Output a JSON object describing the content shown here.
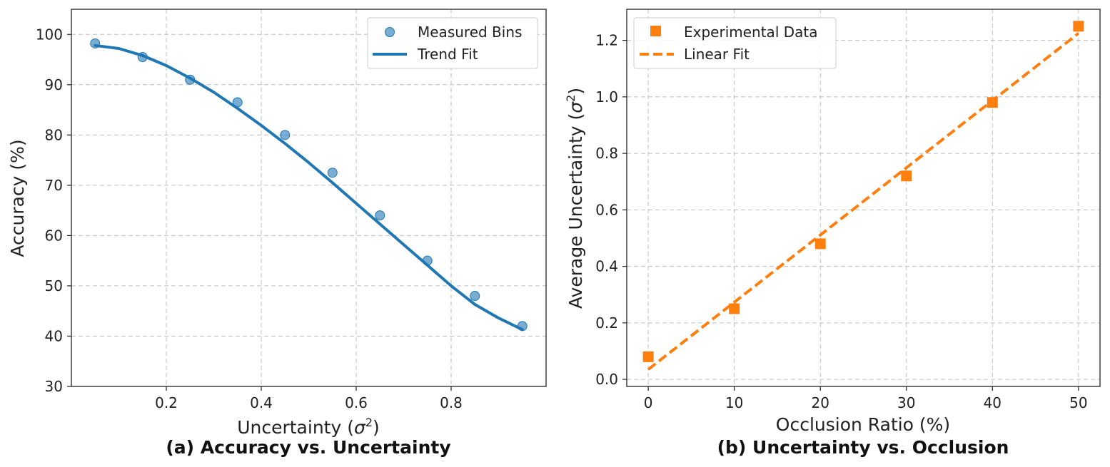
{
  "chart_data": [
    {
      "type": "scatter",
      "title": "",
      "caption": "(a) Accuracy vs. Uncertainty",
      "xlabel": "Uncertainty (",
      "xlabel_symbol": "σ",
      "xlabel_sup": "2",
      "xlabel_close": ")",
      "ylabel": "Accuracy (%)",
      "xlim": [
        0.0,
        1.0
      ],
      "ylim": [
        30,
        105
      ],
      "xticks": [
        0.2,
        0.4,
        0.6,
        0.8
      ],
      "xtick_labels": [
        "0.2",
        "0.4",
        "0.6",
        "0.8"
      ],
      "yticks": [
        30,
        40,
        50,
        60,
        70,
        80,
        90,
        100
      ],
      "ytick_labels": [
        "30",
        "40",
        "50",
        "60",
        "70",
        "80",
        "90",
        "100"
      ],
      "grid": true,
      "legend_position": "top-right",
      "series": [
        {
          "name": "Measured Bins",
          "kind": "scatter",
          "color": "#1f77b4",
          "x": [
            0.05,
            0.15,
            0.25,
            0.35,
            0.45,
            0.55,
            0.65,
            0.75,
            0.85,
            0.95
          ],
          "y": [
            98.2,
            95.5,
            91.0,
            86.5,
            80.0,
            72.5,
            64.0,
            55.0,
            48.0,
            42.0
          ]
        },
        {
          "name": "Trend Fit",
          "kind": "line",
          "color": "#1f77b4",
          "x": [
            0.05,
            0.1,
            0.15,
            0.2,
            0.25,
            0.3,
            0.35,
            0.4,
            0.45,
            0.5,
            0.55,
            0.6,
            0.65,
            0.7,
            0.75,
            0.8,
            0.85,
            0.9,
            0.95
          ],
          "y": [
            97.8,
            97.2,
            95.8,
            93.8,
            91.3,
            88.5,
            85.3,
            81.9,
            78.3,
            74.5,
            70.5,
            66.4,
            62.3,
            58.2,
            54.1,
            50.0,
            46.3,
            43.6,
            41.3
          ]
        }
      ]
    },
    {
      "type": "scatter",
      "title": "",
      "caption": "(b) Uncertainty vs. Occlusion",
      "xlabel": "Occlusion Ratio (%)",
      "ylabel": "Average Uncertainty (",
      "ylabel_symbol": "σ",
      "ylabel_sup": "2",
      "ylabel_close": ")",
      "xlim": [
        -2.5,
        52.5
      ],
      "ylim": [
        -0.025,
        1.31
      ],
      "xticks": [
        0,
        10,
        20,
        30,
        40,
        50
      ],
      "xtick_labels": [
        "0",
        "10",
        "20",
        "30",
        "40",
        "50"
      ],
      "yticks": [
        0.0,
        0.2,
        0.4,
        0.6,
        0.8,
        1.0,
        1.2
      ],
      "ytick_labels": [
        "0.0",
        "0.2",
        "0.4",
        "0.6",
        "0.8",
        "1.0",
        "1.2"
      ],
      "grid": true,
      "legend_position": "top-left",
      "series": [
        {
          "name": "Experimental Data",
          "kind": "scatter",
          "marker": "square",
          "color": "#ff7f0e",
          "x": [
            0,
            10,
            20,
            30,
            40,
            50
          ],
          "y": [
            0.08,
            0.25,
            0.48,
            0.72,
            0.98,
            1.25
          ]
        },
        {
          "name": "Linear Fit",
          "kind": "line",
          "dashed": true,
          "color": "#ff7f0e",
          "x": [
            0,
            50
          ],
          "y": [
            0.035,
            1.225
          ]
        }
      ]
    }
  ]
}
